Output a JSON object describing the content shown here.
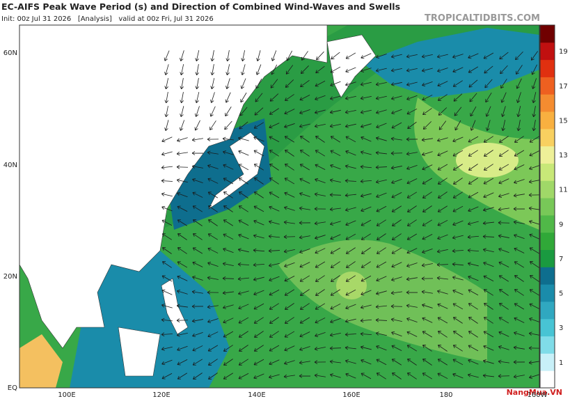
{
  "header": {
    "title": "EC-AIFS Peak Wave Period (s) and Direction of Combined Wind-Waves and Swells",
    "subtitle": "Init: 00z Jul 31 2026   [Analysis]   valid at 00z Fri, Jul 31 2026",
    "source": "TROPICALTIDBITS.COM"
  },
  "map": {
    "lat_labels": [
      "60N",
      "40N",
      "20N",
      "EQ"
    ],
    "lon_labels": [
      "100E",
      "120E",
      "140E",
      "160E",
      "180",
      "160W"
    ]
  },
  "colorbar": {
    "labels": [
      "1",
      "3",
      "5",
      "7",
      "9",
      "11",
      "13",
      "15",
      "17",
      "19"
    ],
    "colors": [
      "#ffffff",
      "#c8f0f8",
      "#80dce8",
      "#48c4d4",
      "#30a8c0",
      "#1a8caa",
      "#0e6e8e",
      "#1a9a40",
      "#30a838",
      "#50b848",
      "#78c858",
      "#a0d868",
      "#c8e878",
      "#eef098",
      "#f8d060",
      "#f8b040",
      "#f48c30",
      "#ee6020",
      "#e03010",
      "#c01010",
      "#700000"
    ]
  },
  "watermark": "NangMua.VN"
}
